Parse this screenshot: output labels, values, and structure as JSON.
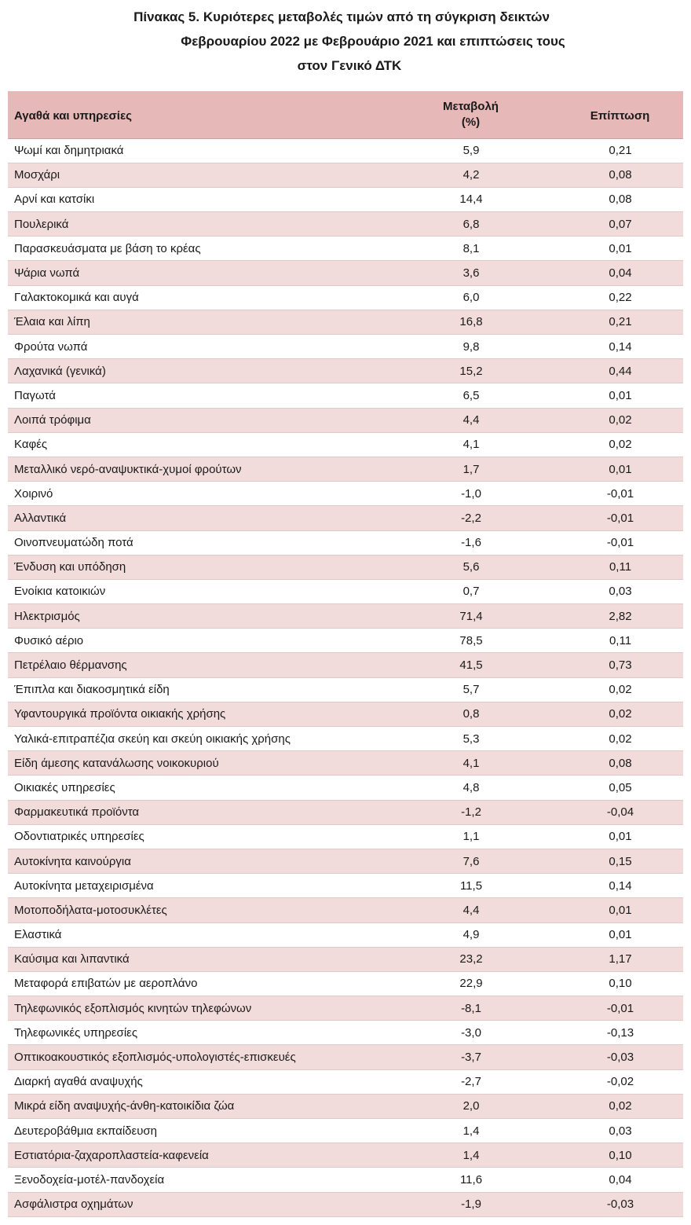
{
  "title": {
    "line1": "Πίνακας  5. Κυριότερες μεταβολές τιμών από τη σύγκριση δεικτών",
    "line2": "Φεβρουαρίου 2022 με Φεβρουάριο 2021 και επιπτώσεις τους",
    "line3": "στον Γενικό ΔΤΚ"
  },
  "table": {
    "headers": {
      "item": "Αγαθά και υπηρεσίες",
      "change_line1": "Μεταβολή",
      "change_line2": "(%)",
      "effect": "Επίπτωση"
    },
    "rows": [
      {
        "item": "Ψωμί και δημητριακά",
        "change": "5,9",
        "effect": "0,21"
      },
      {
        "item": "Μοσχάρι",
        "change": "4,2",
        "effect": "0,08"
      },
      {
        "item": "Αρνί και κατσίκι",
        "change": "14,4",
        "effect": "0,08"
      },
      {
        "item": "Πουλερικά",
        "change": "6,8",
        "effect": "0,07"
      },
      {
        "item": "Παρασκευάσματα με βάση το κρέας",
        "change": "8,1",
        "effect": "0,01"
      },
      {
        "item": "Ψάρια νωπά",
        "change": "3,6",
        "effect": "0,04"
      },
      {
        "item": "Γαλακτοκομικά και αυγά",
        "change": "6,0",
        "effect": "0,22"
      },
      {
        "item": "Έλαια και λίπη",
        "change": "16,8",
        "effect": "0,21"
      },
      {
        "item": "Φρούτα νωπά",
        "change": "9,8",
        "effect": "0,14"
      },
      {
        "item": "Λαχανικά (γενικά)",
        "change": "15,2",
        "effect": "0,44"
      },
      {
        "item": "Παγωτά",
        "change": "6,5",
        "effect": "0,01"
      },
      {
        "item": "Λοιπά τρόφιμα",
        "change": "4,4",
        "effect": "0,02"
      },
      {
        "item": "Καφές",
        "change": "4,1",
        "effect": "0,02"
      },
      {
        "item": "Μεταλλικό νερό-αναψυκτικά-χυμοί φρούτων",
        "change": "1,7",
        "effect": "0,01"
      },
      {
        "item": "Χοιρινό",
        "change": "-1,0",
        "effect": "-0,01"
      },
      {
        "item": "Αλλαντικά",
        "change": "-2,2",
        "effect": "-0,01"
      },
      {
        "item": "Οινοπνευματώδη ποτά",
        "change": "-1,6",
        "effect": "-0,01"
      },
      {
        "item": "Ένδυση και υπόδηση",
        "change": "5,6",
        "effect": "0,11"
      },
      {
        "item": "Ενοίκια κατοικιών",
        "change": "0,7",
        "effect": "0,03"
      },
      {
        "item": "Ηλεκτρισμός",
        "change": "71,4",
        "effect": "2,82"
      },
      {
        "item": "Φυσικό αέριο",
        "change": "78,5",
        "effect": "0,11"
      },
      {
        "item": "Πετρέλαιο θέρμανσης",
        "change": "41,5",
        "effect": "0,73"
      },
      {
        "item": "Έπιπλα και διακοσμητικά είδη",
        "change": "5,7",
        "effect": "0,02"
      },
      {
        "item": "Υφαντουργικά προϊόντα οικιακής χρήσης",
        "change": "0,8",
        "effect": "0,02"
      },
      {
        "item": "Υαλικά-επιτραπέζια σκεύη και σκεύη οικιακής χρήσης",
        "change": "5,3",
        "effect": "0,02"
      },
      {
        "item": "Είδη άμεσης κατανάλωσης νοικοκυριού",
        "change": "4,1",
        "effect": "0,08"
      },
      {
        "item": "Οικιακές υπηρεσίες",
        "change": "4,8",
        "effect": "0,05"
      },
      {
        "item": "Φαρμακευτικά προϊόντα",
        "change": "-1,2",
        "effect": "-0,04"
      },
      {
        "item": "Οδοντιατρικές υπηρεσίες",
        "change": "1,1",
        "effect": "0,01"
      },
      {
        "item": "Αυτοκίνητα καινούργια",
        "change": "7,6",
        "effect": "0,15"
      },
      {
        "item": "Αυτοκίνητα μεταχειρισμένα",
        "change": "11,5",
        "effect": "0,14"
      },
      {
        "item": "Μοτοποδήλατα-μοτοσυκλέτες",
        "change": "4,4",
        "effect": "0,01"
      },
      {
        "item": "Ελαστικά",
        "change": "4,9",
        "effect": "0,01"
      },
      {
        "item": "Καύσιμα και λιπαντικά",
        "change": "23,2",
        "effect": "1,17"
      },
      {
        "item": "Μεταφορά επιβατών με αεροπλάνο",
        "change": "22,9",
        "effect": "0,10"
      },
      {
        "item": "Τηλεφωνικός εξοπλισμός κινητών τηλεφώνων",
        "change": "-8,1",
        "effect": "-0,01"
      },
      {
        "item": "Τηλεφωνικές υπηρεσίες",
        "change": "-3,0",
        "effect": "-0,13"
      },
      {
        "item": "Οπτικοακουστικός εξοπλισμός-υπολογιστές-επισκευές",
        "change": "-3,7",
        "effect": "-0,03"
      },
      {
        "item": "Διαρκή αγαθά αναψυχής",
        "change": "-2,7",
        "effect": "-0,02"
      },
      {
        "item": "Μικρά είδη αναψυχής-άνθη-κατοικίδια ζώα",
        "change": "2,0",
        "effect": "0,02"
      },
      {
        "item": "Δευτεροβάθμια εκπαίδευση",
        "change": "1,4",
        "effect": "0,03"
      },
      {
        "item": "Εστιατόρια-ζαχαροπλαστεία-καφενεία",
        "change": "1,4",
        "effect": "0,10"
      },
      {
        "item": "Ξενοδοχεία-μοτέλ-πανδοχεία",
        "change": "11,6",
        "effect": "0,04"
      },
      {
        "item": "Ασφάλιστρα οχημάτων",
        "change": "-1,9",
        "effect": "-0,03"
      }
    ]
  }
}
